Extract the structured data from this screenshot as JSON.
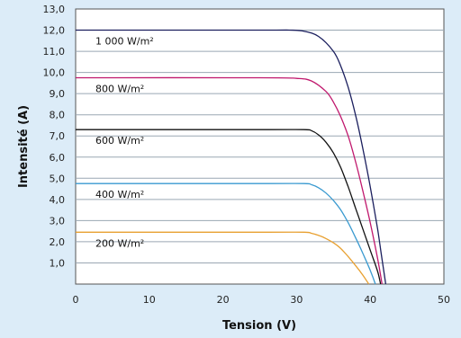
{
  "chart_data": {
    "type": "line",
    "title": "",
    "xlabel": "Tension (V)",
    "ylabel": "Intensité (A)",
    "xlim": [
      0,
      50
    ],
    "ylim": [
      0,
      13
    ],
    "x_ticks": [
      "0",
      "10",
      "20",
      "30",
      "40",
      "50"
    ],
    "y_ticks": [
      "1,0",
      "2,0",
      "3,0",
      "4,0",
      "5,0",
      "6,0",
      "7,0",
      "8,0",
      "9,0",
      "10,0",
      "11,0",
      "12,0",
      "13,0"
    ],
    "grid": "horizontal",
    "series": [
      {
        "name": "1 000 W/m²",
        "color": "#1b1f5e",
        "x": [
          0,
          25,
          29,
          31,
          33,
          35,
          36,
          37,
          38,
          39,
          40,
          41,
          41.5,
          42.1
        ],
        "y": [
          12.0,
          12.0,
          12.0,
          11.95,
          11.7,
          11.0,
          10.3,
          9.3,
          8.0,
          6.4,
          4.6,
          2.6,
          1.4,
          0
        ]
      },
      {
        "name": "800 W/m²",
        "color": "#c0186d",
        "x": [
          0,
          25,
          30,
          32,
          34,
          35,
          36,
          37,
          38,
          39,
          40,
          41,
          41.6
        ],
        "y": [
          9.75,
          9.75,
          9.72,
          9.6,
          9.1,
          8.6,
          7.9,
          7.0,
          5.8,
          4.4,
          2.9,
          1.2,
          0
        ]
      },
      {
        "name": "600 W/m²",
        "color": "#111111",
        "x": [
          0,
          25,
          31,
          32,
          33,
          34,
          35,
          36,
          37,
          38,
          39,
          40,
          41,
          41.4
        ],
        "y": [
          7.3,
          7.3,
          7.3,
          7.25,
          7.05,
          6.7,
          6.2,
          5.5,
          4.6,
          3.6,
          2.6,
          1.6,
          0.6,
          0
        ]
      },
      {
        "name": "400 W/m²",
        "color": "#3a9ad0",
        "x": [
          0,
          25,
          31,
          32,
          33,
          34,
          35,
          36,
          37,
          38,
          39,
          40,
          40.7
        ],
        "y": [
          4.75,
          4.75,
          4.75,
          4.7,
          4.55,
          4.3,
          3.95,
          3.5,
          2.9,
          2.2,
          1.45,
          0.65,
          0
        ]
      },
      {
        "name": "200 W/m²",
        "color": "#e8a030",
        "x": [
          0,
          25,
          31,
          32,
          33,
          34,
          35,
          36,
          37,
          38,
          39,
          39.8
        ],
        "y": [
          2.45,
          2.45,
          2.45,
          2.4,
          2.3,
          2.15,
          1.95,
          1.68,
          1.3,
          0.88,
          0.42,
          0
        ]
      }
    ]
  }
}
